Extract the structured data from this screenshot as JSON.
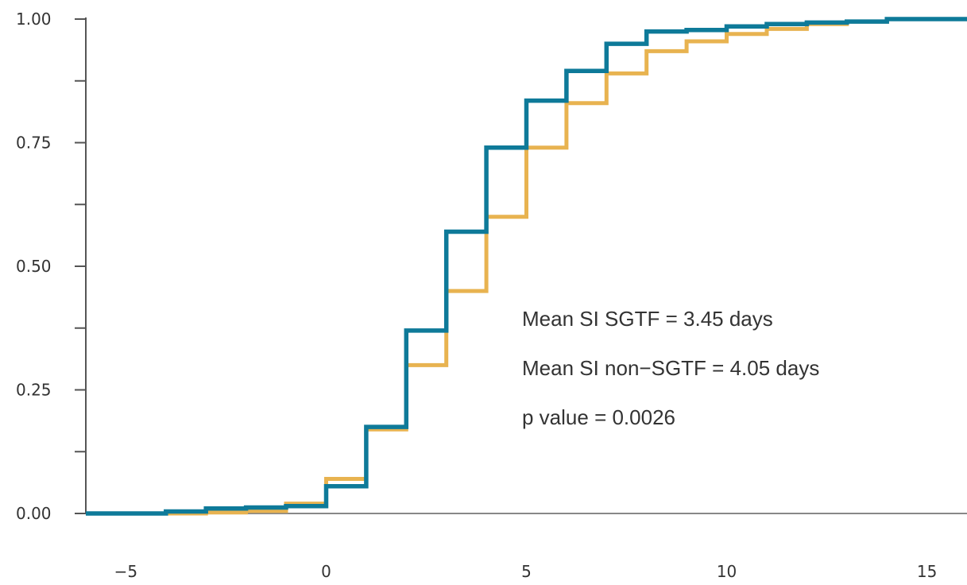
{
  "chart_data": {
    "type": "line",
    "step": "post",
    "xlim": [
      -6,
      16
    ],
    "ylim": [
      0,
      1
    ],
    "x_ticks": [
      -5,
      0,
      5,
      10,
      15
    ],
    "x_tick_labels": [
      "−5",
      "0",
      "5",
      "10",
      "15"
    ],
    "y_ticks": [
      0,
      0.25,
      0.5,
      0.75,
      1.0
    ],
    "y_tick_labels": [
      "0.00",
      "0.25",
      "0.50",
      "0.75",
      "1.00"
    ],
    "y_minor_ticks": [
      0.125,
      0.375,
      0.625,
      0.875
    ],
    "grid": false,
    "legend": "none",
    "series": [
      {
        "color": "#e8b350",
        "x": [
          -6,
          -4,
          -3,
          -2,
          -1,
          0,
          1,
          2,
          3,
          4,
          5,
          6,
          7,
          8,
          9,
          10,
          11,
          12,
          13,
          14,
          15,
          16
        ],
        "values": [
          0.0,
          0.0,
          0.002,
          0.005,
          0.02,
          0.07,
          0.17,
          0.3,
          0.45,
          0.6,
          0.74,
          0.83,
          0.89,
          0.935,
          0.955,
          0.97,
          0.98,
          0.99,
          0.995,
          1.0,
          1.0,
          1.0
        ]
      },
      {
        "color": "#0e7a99",
        "x": [
          -6,
          -4,
          -3,
          -2,
          -1,
          0,
          1,
          2,
          3,
          4,
          5,
          6,
          7,
          8,
          9,
          10,
          11,
          12,
          13,
          14,
          15,
          16
        ],
        "values": [
          0.0,
          0.004,
          0.01,
          0.012,
          0.015,
          0.055,
          0.175,
          0.37,
          0.57,
          0.74,
          0.835,
          0.895,
          0.95,
          0.975,
          0.978,
          0.985,
          0.99,
          0.993,
          0.995,
          1.0,
          1.0,
          1.0
        ]
      }
    ],
    "annotations": [
      "Mean SI SGTF =  3.45 days",
      "Mean SI non−SGTF =  4.05 days",
      "p value =  0.0026"
    ]
  }
}
